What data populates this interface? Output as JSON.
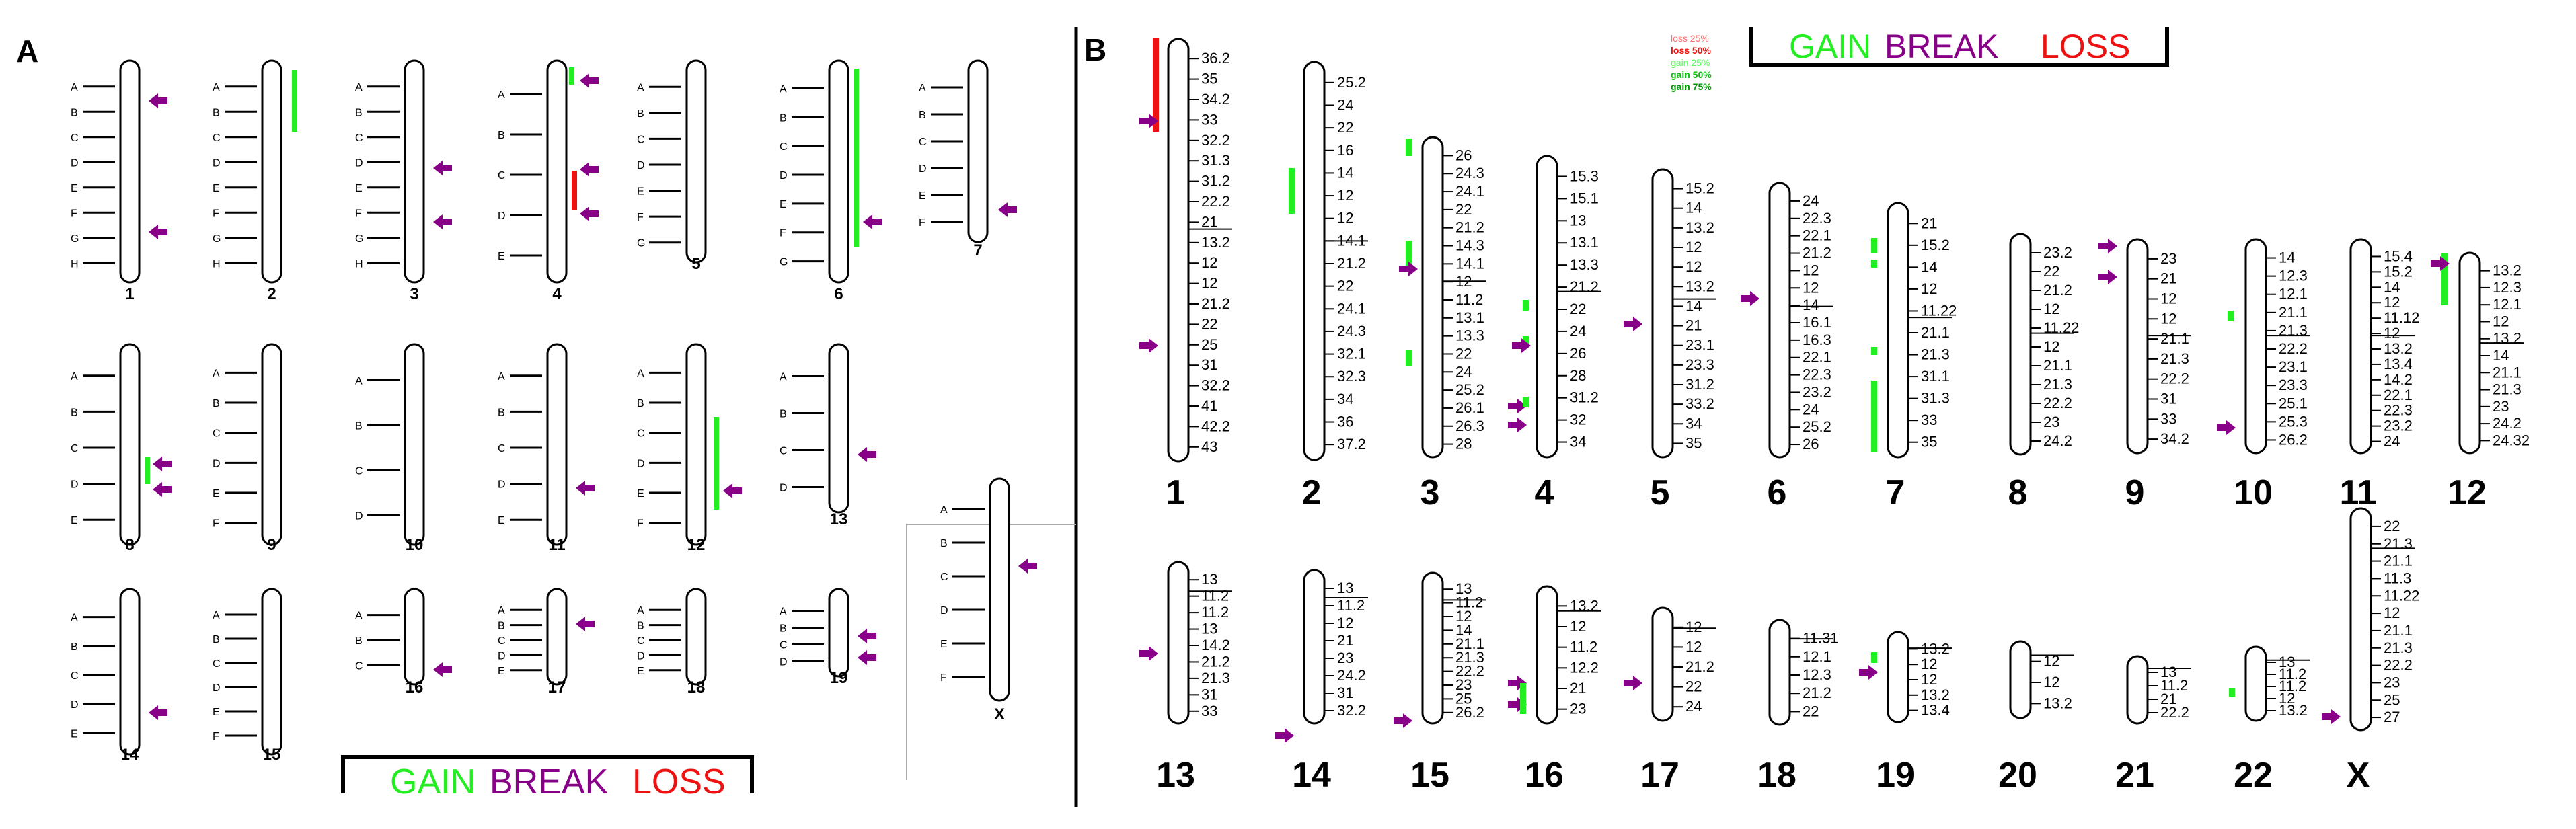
{
  "panels": {
    "a": {
      "letter": "A"
    },
    "b": {
      "letter": "B"
    }
  },
  "legend": {
    "gain": "GAIN",
    "break": "BREAK",
    "loss": "LOSS",
    "small": [
      "loss 25%",
      "loss 50%",
      "gain 25%",
      "gain 50%",
      "gain 75%"
    ]
  },
  "colors": {
    "gain": "#22ee22",
    "break": "#880088",
    "loss": "#ee1111",
    "loss_light": "#ff7070",
    "gain_light": "#55ff55",
    "gain_dark": "#009900",
    "band_dark": "#000000",
    "band_gray": "#8a8a8a",
    "band_light": "#c8c8c8"
  },
  "panel_a": {
    "chromosomes": [
      {
        "id": "1",
        "bands": [
          "A",
          "B",
          "C",
          "D",
          "E",
          "F",
          "G",
          "H"
        ]
      },
      {
        "id": "2",
        "bands": [
          "A",
          "B",
          "C",
          "D",
          "E",
          "F",
          "G",
          "H"
        ]
      },
      {
        "id": "3",
        "bands": [
          "A",
          "B",
          "C",
          "D",
          "E",
          "F",
          "G",
          "H"
        ]
      },
      {
        "id": "4",
        "bands": [
          "A",
          "B",
          "C",
          "D",
          "E"
        ]
      },
      {
        "id": "5",
        "bands": [
          "A",
          "B",
          "C",
          "D",
          "E",
          "F",
          "G"
        ]
      },
      {
        "id": "6",
        "bands": [
          "A",
          "B",
          "C",
          "D",
          "E",
          "F",
          "G"
        ]
      },
      {
        "id": "7",
        "bands": [
          "A",
          "B",
          "C",
          "D",
          "E",
          "F"
        ]
      },
      {
        "id": "8",
        "bands": [
          "A",
          "B",
          "C",
          "D",
          "E"
        ]
      },
      {
        "id": "9",
        "bands": [
          "A",
          "B",
          "C",
          "D",
          "E",
          "F"
        ]
      },
      {
        "id": "10",
        "bands": [
          "A",
          "B",
          "C",
          "D"
        ]
      },
      {
        "id": "11",
        "bands": [
          "A",
          "B",
          "C",
          "D",
          "E"
        ]
      },
      {
        "id": "12",
        "bands": [
          "A",
          "B",
          "C",
          "D",
          "E",
          "F"
        ]
      },
      {
        "id": "13",
        "bands": [
          "A",
          "B",
          "C",
          "D"
        ]
      },
      {
        "id": "14",
        "bands": [
          "A",
          "B",
          "C",
          "D",
          "E"
        ]
      },
      {
        "id": "15",
        "bands": [
          "A",
          "B",
          "C",
          "D",
          "E",
          "F"
        ]
      },
      {
        "id": "16",
        "bands": [
          "A",
          "B",
          "C"
        ]
      },
      {
        "id": "17",
        "bands": [
          "A",
          "B",
          "C",
          "D",
          "E"
        ]
      },
      {
        "id": "18",
        "bands": [
          "A",
          "B",
          "C",
          "D",
          "E"
        ]
      },
      {
        "id": "19",
        "bands": [
          "A",
          "B",
          "C",
          "D"
        ]
      },
      {
        "id": "X",
        "bands": [
          "A",
          "B",
          "C",
          "D",
          "E",
          "F"
        ]
      }
    ]
  },
  "panel_b": {
    "chromosomes": [
      {
        "id": "1",
        "labels": [
          "36.2",
          "35",
          "34.2",
          "33",
          "32.2",
          "31.3",
          "31.2",
          "22.2",
          "21",
          "13.2",
          "12",
          "12",
          "21.2",
          "22",
          "25",
          "31",
          "32.2",
          "41",
          "42.2",
          "43"
        ]
      },
      {
        "id": "2",
        "labels": [
          "25.2",
          "24",
          "22",
          "16",
          "14",
          "12",
          "12",
          "14.1",
          "21.2",
          "22",
          "24.1",
          "24.3",
          "32.1",
          "32.3",
          "34",
          "36",
          "37.2"
        ]
      },
      {
        "id": "3",
        "labels": [
          "26",
          "24.3",
          "24.1",
          "22",
          "21.2",
          "14.3",
          "14.1",
          "12",
          "11.2",
          "13.1",
          "13.3",
          "22",
          "24",
          "25.2",
          "26.1",
          "26.3",
          "28"
        ]
      },
      {
        "id": "4",
        "labels": [
          "15.3",
          "15.1",
          "13",
          "13.1",
          "13.3",
          "21.2",
          "22",
          "24",
          "26",
          "28",
          "31.2",
          "32",
          "34"
        ]
      },
      {
        "id": "5",
        "labels": [
          "15.2",
          "14",
          "13.2",
          "12",
          "12",
          "13.2",
          "14",
          "21",
          "23.1",
          "23.3",
          "31.2",
          "33.2",
          "34",
          "35"
        ]
      },
      {
        "id": "6",
        "labels": [
          "24",
          "22.3",
          "22.1",
          "21.2",
          "12",
          "12",
          "14",
          "16.1",
          "16.3",
          "22.1",
          "22.3",
          "23.2",
          "24",
          "25.2",
          "26"
        ]
      },
      {
        "id": "7",
        "labels": [
          "21",
          "15.2",
          "14",
          "12",
          "11.22",
          "21.1",
          "21.3",
          "31.1",
          "31.3",
          "33",
          "35"
        ]
      },
      {
        "id": "8",
        "labels": [
          "23.2",
          "22",
          "21.2",
          "12",
          "11.22",
          "12",
          "21.1",
          "21.3",
          "22.2",
          "23",
          "24.2"
        ]
      },
      {
        "id": "9",
        "labels": [
          "23",
          "21",
          "12",
          "12",
          "21.1",
          "21.3",
          "22.2",
          "31",
          "33",
          "34.2"
        ]
      },
      {
        "id": "10",
        "labels": [
          "14",
          "12.3",
          "12.1",
          "21.1",
          "21.3",
          "22.2",
          "23.1",
          "23.3",
          "25.1",
          "25.3",
          "26.2"
        ]
      },
      {
        "id": "11",
        "labels": [
          "15.4",
          "15.2",
          "14",
          "12",
          "11.12",
          "12",
          "13.2",
          "13.4",
          "14.2",
          "22.1",
          "22.3",
          "23.2",
          "24"
        ]
      },
      {
        "id": "12",
        "labels": [
          "13.2",
          "12.3",
          "12.1",
          "12",
          "13.2",
          "14",
          "21.1",
          "21.3",
          "23",
          "24.2",
          "24.32"
        ]
      },
      {
        "id": "13",
        "labels": [
          "13",
          "11.2",
          "11.2",
          "13",
          "14.2",
          "21.2",
          "21.3",
          "31",
          "33"
        ]
      },
      {
        "id": "14",
        "labels": [
          "13",
          "11.2",
          "12",
          "21",
          "23",
          "24.2",
          "31",
          "32.2"
        ]
      },
      {
        "id": "15",
        "labels": [
          "13",
          "11.2",
          "12",
          "14",
          "21.1",
          "21.3",
          "22.2",
          "23",
          "25",
          "26.2"
        ]
      },
      {
        "id": "16",
        "labels": [
          "13.2",
          "12",
          "11.2",
          "12.2",
          "21",
          "23"
        ]
      },
      {
        "id": "17",
        "labels": [
          "12",
          "12",
          "21.2",
          "22",
          "24"
        ]
      },
      {
        "id": "18",
        "labels": [
          "11.31",
          "12.1",
          "12.3",
          "21.2",
          "22"
        ]
      },
      {
        "id": "19",
        "labels": [
          "13.2",
          "12",
          "12",
          "13.2",
          "13.4"
        ]
      },
      {
        "id": "20",
        "labels": [
          "12",
          "12",
          "13.2"
        ]
      },
      {
        "id": "21",
        "labels": [
          "13",
          "11.2",
          "21",
          "22.2"
        ]
      },
      {
        "id": "22",
        "labels": [
          "13",
          "11.2",
          "11.2",
          "12",
          "13.2"
        ]
      },
      {
        "id": "X",
        "labels": [
          "22",
          "21.3",
          "21.1",
          "11.3",
          "11.22",
          "12",
          "21.1",
          "21.3",
          "22.2",
          "23",
          "25",
          "27"
        ]
      }
    ]
  }
}
